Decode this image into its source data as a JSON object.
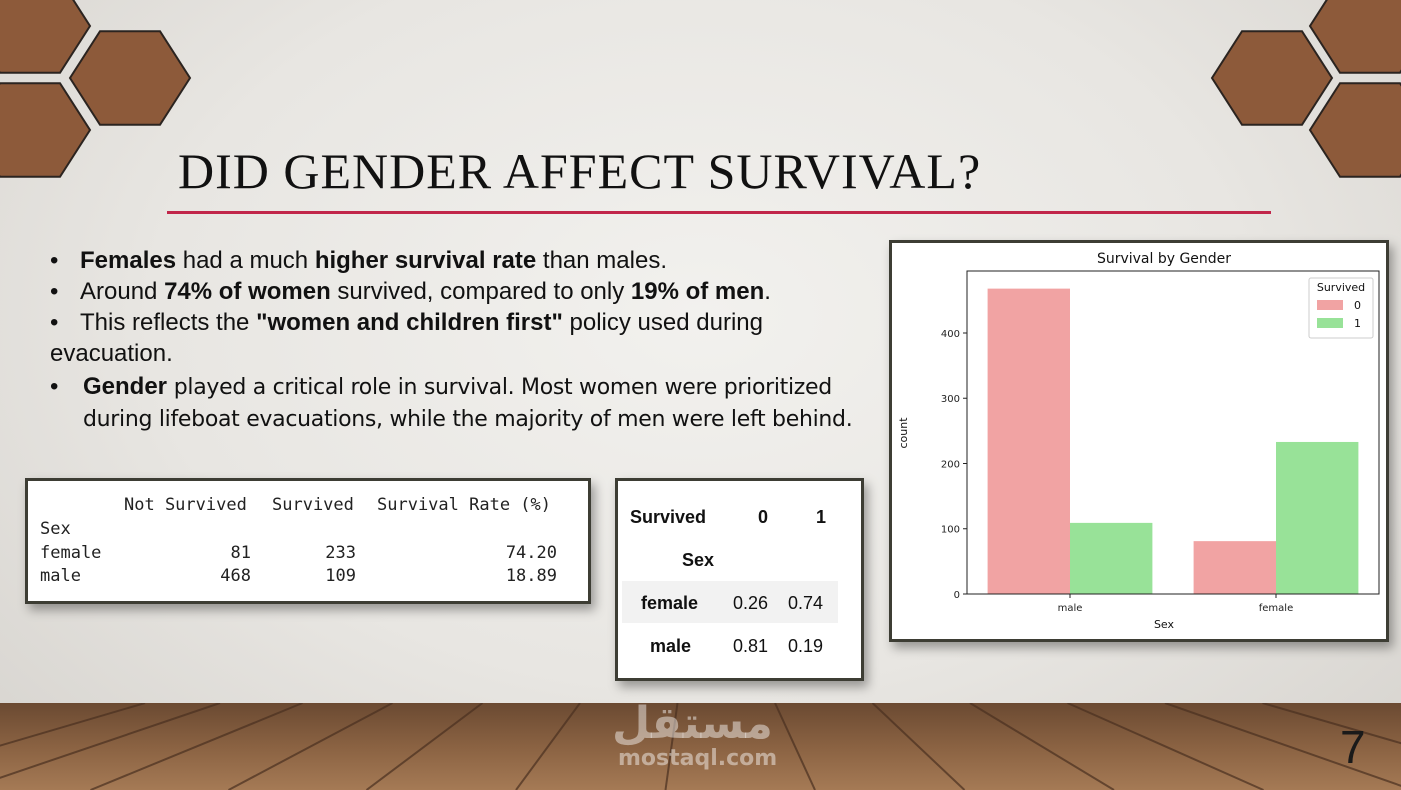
{
  "slide": {
    "title": "DID GENDER AFFECT SURVIVAL?",
    "page_number": "7",
    "watermark_arabic": "مستقل",
    "watermark_latin": "mostaql.com",
    "colors": {
      "accent_rule": "#c1264a",
      "hexagon": "#8d5a3a",
      "hex_stroke": "#2b2420"
    }
  },
  "bullets": {
    "b1": {
      "p1": "Females",
      "p2": " had a much ",
      "p3": "higher survival rate",
      "p4": " than males."
    },
    "b2": {
      "p1": "Around ",
      "p2": "74% of women",
      "p3": " survived, compared to only ",
      "p4": "19% of men",
      "p5": "."
    },
    "b3": {
      "p1": "This reflects the ",
      "p2": "\"women and children first\"",
      "p3": " policy used during",
      "p4": "evacuation."
    },
    "b4": {
      "p1": "Gender",
      "p2": " played a critical role in survival. Most women were prioritized",
      "p3": "during lifeboat evacuations, while the majority of men were left behind."
    },
    "bullet_glyph": "•"
  },
  "stats_table": {
    "columns": [
      "Not Survived",
      "Survived",
      "Survival Rate (%)"
    ],
    "index_name": "Sex",
    "rows": [
      {
        "label": "female",
        "not_survived": "81",
        "survived": "233",
        "rate": "74.20"
      },
      {
        "label": "male",
        "not_survived": "468",
        "survived": "109",
        "rate": "18.89"
      }
    ]
  },
  "crosstab": {
    "column_name": "Survived",
    "columns": [
      "0",
      "1"
    ],
    "index_name": "Sex",
    "rows": [
      {
        "label": "female",
        "v0": "0.26",
        "v1": "0.74"
      },
      {
        "label": "male",
        "v0": "0.81",
        "v1": "0.19"
      }
    ]
  },
  "chart_data": {
    "type": "bar",
    "title": "Survival by Gender",
    "xlabel": "Sex",
    "ylabel": "count",
    "categories": [
      "male",
      "female"
    ],
    "series": [
      {
        "name": "0",
        "values": [
          468,
          81
        ],
        "color": "#f1a3a3"
      },
      {
        "name": "1",
        "values": [
          109,
          233
        ],
        "color": "#98e298"
      }
    ],
    "ylim": [
      0,
      495
    ],
    "yticks": [
      0,
      100,
      200,
      300,
      400
    ],
    "legend": {
      "title": "Survived",
      "position": "top-right"
    },
    "grid": false
  }
}
